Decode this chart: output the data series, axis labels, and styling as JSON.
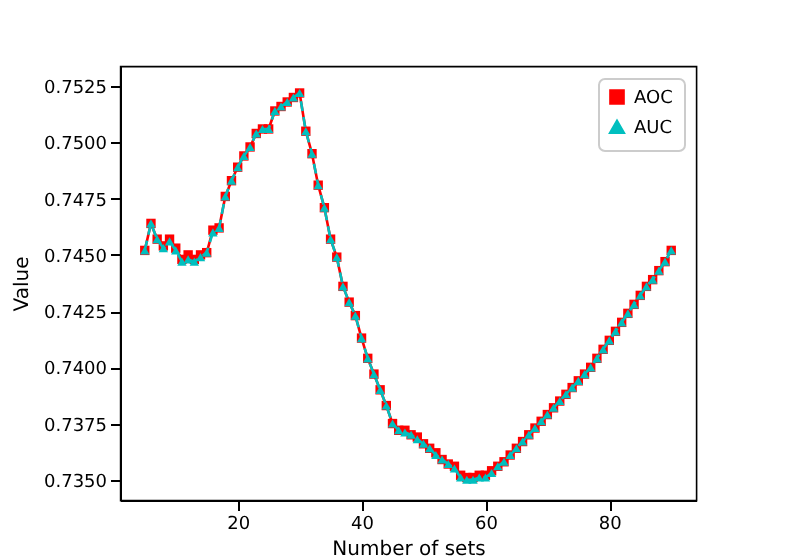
{
  "chart_data": {
    "type": "line",
    "xlabel": "Number of sets",
    "ylabel": "Value",
    "x": [
      5,
      6,
      7,
      8,
      9,
      10,
      11,
      12,
      13,
      14,
      15,
      16,
      17,
      18,
      19,
      20,
      21,
      22,
      23,
      24,
      25,
      26,
      27,
      28,
      29,
      30,
      31,
      32,
      33,
      34,
      35,
      36,
      37,
      38,
      39,
      40,
      41,
      42,
      43,
      44,
      45,
      46,
      47,
      48,
      49,
      50,
      51,
      52,
      53,
      54,
      55,
      56,
      57,
      58,
      59,
      60,
      61,
      62,
      63,
      64,
      65,
      66,
      67,
      68,
      69,
      70,
      71,
      72,
      73,
      74,
      75,
      76,
      77,
      78,
      79,
      80,
      81,
      82,
      83,
      84,
      85,
      86,
      87,
      88,
      89,
      90
    ],
    "series": [
      {
        "name": "AOC",
        "color": "#ff0000",
        "marker": "square",
        "line_style": "solid",
        "values": [
          0.7452,
          0.7464,
          0.7457,
          0.7454,
          0.7457,
          0.7453,
          0.7448,
          0.745,
          0.7448,
          0.745,
          0.7451,
          0.7461,
          0.7462,
          0.7476,
          0.7483,
          0.7489,
          0.7494,
          0.7498,
          0.7504,
          0.7506,
          0.7506,
          0.7514,
          0.7516,
          0.7518,
          0.752,
          0.7522,
          0.7505,
          0.7495,
          0.7481,
          0.7471,
          0.7457,
          0.7449,
          0.7436,
          0.7429,
          0.7423,
          0.7413,
          0.7404,
          0.7397,
          0.739,
          0.7383,
          0.7375,
          0.7372,
          0.7372,
          0.737,
          0.7369,
          0.7366,
          0.7364,
          0.7362,
          0.7359,
          0.7357,
          0.7356,
          0.7352,
          0.7351,
          0.7351,
          0.7352,
          0.7352,
          0.7354,
          0.7356,
          0.7358,
          0.7361,
          0.7364,
          0.7367,
          0.737,
          0.7373,
          0.7376,
          0.7379,
          0.7382,
          0.7385,
          0.7388,
          0.7391,
          0.7394,
          0.7397,
          0.74,
          0.7404,
          0.7408,
          0.7412,
          0.7416,
          0.742,
          0.7424,
          0.7428,
          0.7432,
          0.7436,
          0.7439,
          0.7443,
          0.7447,
          0.7452
        ]
      },
      {
        "name": "AUC",
        "color": "#00bfbf",
        "marker": "triangle",
        "line_style": "dashed",
        "values": [
          0.7452,
          0.7464,
          0.7457,
          0.7453,
          0.7456,
          0.7452,
          0.7447,
          0.7448,
          0.7447,
          0.7449,
          0.7451,
          0.746,
          0.7462,
          0.7476,
          0.7483,
          0.7489,
          0.7494,
          0.7498,
          0.7504,
          0.7506,
          0.7506,
          0.7514,
          0.7516,
          0.7518,
          0.752,
          0.7522,
          0.7505,
          0.7495,
          0.7481,
          0.7471,
          0.7457,
          0.7449,
          0.7436,
          0.7429,
          0.7423,
          0.7413,
          0.7404,
          0.7397,
          0.739,
          0.7383,
          0.7375,
          0.7372,
          0.7371,
          0.737,
          0.7368,
          0.7366,
          0.7364,
          0.7361,
          0.7359,
          0.7357,
          0.7355,
          0.7351,
          0.735,
          0.735,
          0.7351,
          0.7351,
          0.7353,
          0.7356,
          0.7358,
          0.7361,
          0.7364,
          0.7367,
          0.737,
          0.7373,
          0.7376,
          0.7379,
          0.7382,
          0.7385,
          0.7388,
          0.7391,
          0.7394,
          0.7397,
          0.74,
          0.7404,
          0.7408,
          0.7412,
          0.7416,
          0.742,
          0.7424,
          0.7428,
          0.7432,
          0.7436,
          0.7439,
          0.7443,
          0.7447,
          0.7452
        ]
      }
    ],
    "xlim": [
      1,
      94
    ],
    "xticks": [
      20,
      40,
      60,
      80
    ],
    "ylim": [
      0.7341,
      0.7534
    ],
    "yticks": [
      {
        "value": 0.735,
        "label": "0.7350"
      },
      {
        "value": 0.7375,
        "label": "0.7375"
      },
      {
        "value": 0.74,
        "label": "0.7400"
      },
      {
        "value": 0.7425,
        "label": "0.7425"
      },
      {
        "value": 0.745,
        "label": "0.7450"
      },
      {
        "value": 0.7475,
        "label": "0.7475"
      },
      {
        "value": 0.75,
        "label": "0.7500"
      },
      {
        "value": 0.7525,
        "label": "0.7525"
      }
    ],
    "legend": "top right",
    "grid": false
  }
}
